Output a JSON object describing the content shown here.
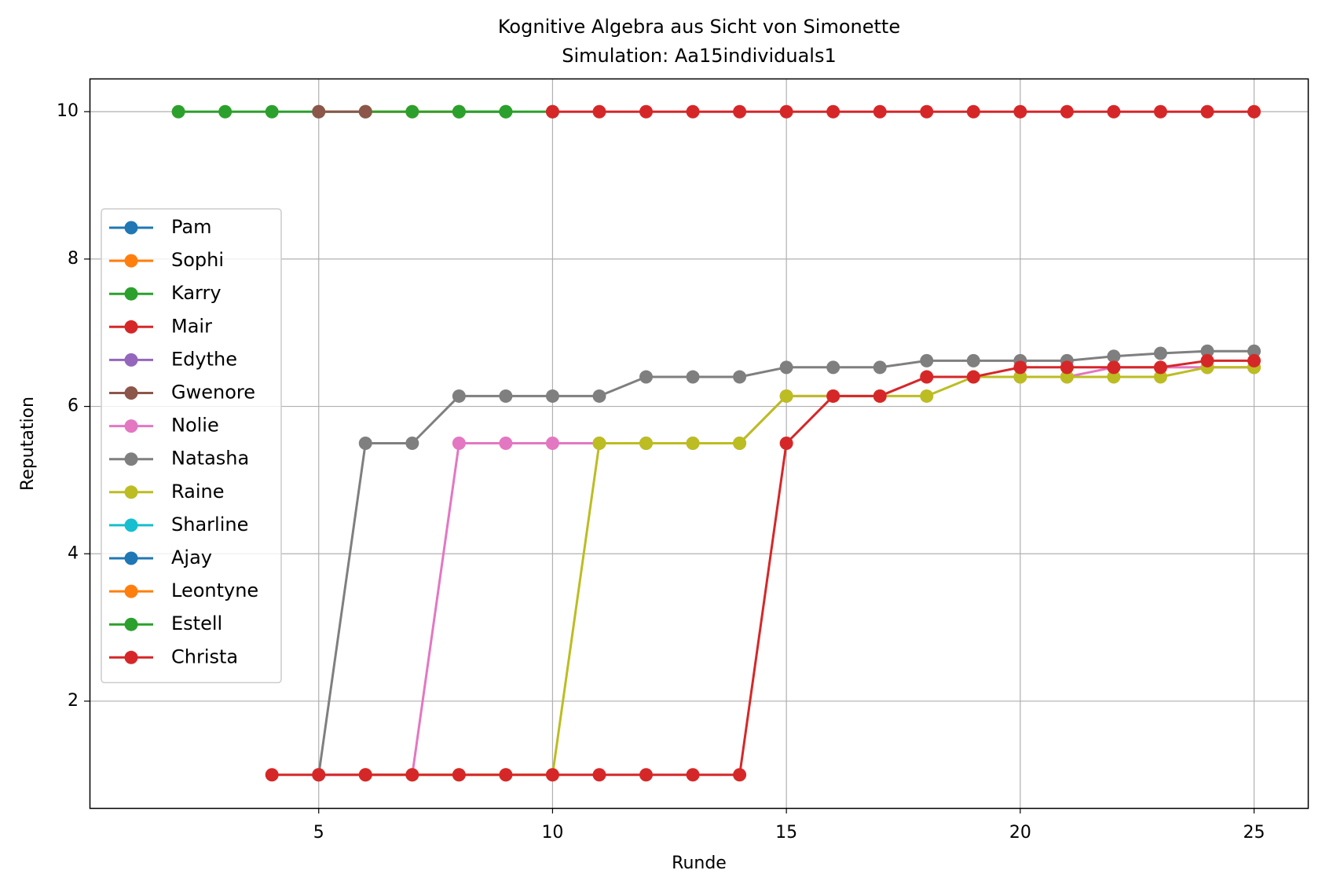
{
  "chart_data": {
    "type": "line",
    "title": "Kognitive Algebra aus Sicht von Simonette",
    "subtitle": "Simulation: Aa15individuals1",
    "xlabel": "Runde",
    "ylabel": "Reputation",
    "xlim": [
      0.1,
      26.15
    ],
    "ylim": [
      0.55,
      10.45
    ],
    "xticks": [
      5,
      10,
      15,
      20,
      25
    ],
    "yticks": [
      2,
      4,
      6,
      8,
      10
    ],
    "grid": true,
    "legend_position": "center-left",
    "series": [
      {
        "name": "Pam",
        "color": "#1f77b4",
        "points": []
      },
      {
        "name": "Sophi",
        "color": "#ff7f0e",
        "points": [
          [
            6,
            10
          ],
          [
            7,
            10
          ],
          [
            8,
            10
          ]
        ]
      },
      {
        "name": "Karry",
        "color": "#2ca02c",
        "points": [
          [
            2,
            10
          ],
          [
            3,
            10
          ],
          [
            4,
            10
          ],
          [
            5,
            10
          ],
          [
            6,
            10
          ],
          [
            7,
            10
          ],
          [
            8,
            10
          ],
          [
            9,
            10
          ],
          [
            10,
            10
          ]
        ]
      },
      {
        "name": "Mair",
        "color": "#d62728",
        "points": [
          [
            10,
            10
          ],
          [
            11,
            10
          ],
          [
            12,
            10
          ],
          [
            13,
            10
          ],
          [
            14,
            10
          ],
          [
            15,
            10
          ],
          [
            16,
            10
          ],
          [
            17,
            10
          ],
          [
            18,
            10
          ],
          [
            19,
            10
          ],
          [
            20,
            10
          ],
          [
            21,
            10
          ],
          [
            22,
            10
          ],
          [
            23,
            10
          ],
          [
            24,
            10
          ],
          [
            25,
            10
          ]
        ]
      },
      {
        "name": "Edythe",
        "color": "#9467bd",
        "points": []
      },
      {
        "name": "Gwenore",
        "color": "#8c564b",
        "points": [
          [
            5,
            10
          ],
          [
            6,
            10
          ]
        ]
      },
      {
        "name": "Nolie",
        "color": "#e377c2",
        "points": [
          [
            5,
            1
          ],
          [
            6,
            1
          ],
          [
            7,
            1
          ],
          [
            8,
            5.5
          ],
          [
            9,
            5.5
          ],
          [
            10,
            5.5
          ],
          [
            11,
            5.5
          ],
          [
            12,
            5.5
          ],
          [
            13,
            5.5
          ],
          [
            14,
            5.5
          ],
          [
            15,
            6.14
          ],
          [
            16,
            6.14
          ],
          [
            17,
            6.14
          ],
          [
            18,
            6.4
          ],
          [
            19,
            6.4
          ],
          [
            20,
            6.4
          ],
          [
            21,
            6.4
          ],
          [
            22,
            6.53
          ],
          [
            23,
            6.53
          ],
          [
            24,
            6.53
          ],
          [
            25,
            6.53
          ]
        ]
      },
      {
        "name": "Natasha",
        "color": "#7f7f7f",
        "points": [
          [
            5,
            1
          ],
          [
            6,
            5.5
          ],
          [
            7,
            5.5
          ],
          [
            8,
            6.14
          ],
          [
            9,
            6.14
          ],
          [
            10,
            6.14
          ],
          [
            11,
            6.14
          ],
          [
            12,
            6.4
          ],
          [
            13,
            6.4
          ],
          [
            14,
            6.4
          ],
          [
            15,
            6.53
          ],
          [
            16,
            6.53
          ],
          [
            17,
            6.53
          ],
          [
            18,
            6.62
          ],
          [
            19,
            6.62
          ],
          [
            20,
            6.62
          ],
          [
            21,
            6.62
          ],
          [
            22,
            6.68
          ],
          [
            23,
            6.72
          ],
          [
            24,
            6.75
          ],
          [
            25,
            6.75
          ]
        ]
      },
      {
        "name": "Raine",
        "color": "#bcbd22",
        "points": [
          [
            6,
            1
          ],
          [
            7,
            1
          ],
          [
            8,
            1
          ],
          [
            9,
            1
          ],
          [
            10,
            1
          ],
          [
            11,
            5.5
          ],
          [
            12,
            5.5
          ],
          [
            13,
            5.5
          ],
          [
            14,
            5.5
          ],
          [
            15,
            6.14
          ],
          [
            16,
            6.14
          ],
          [
            17,
            6.14
          ],
          [
            18,
            6.14
          ],
          [
            19,
            6.4
          ],
          [
            20,
            6.4
          ],
          [
            21,
            6.4
          ],
          [
            22,
            6.4
          ],
          [
            23,
            6.4
          ],
          [
            24,
            6.53
          ],
          [
            25,
            6.53
          ]
        ]
      },
      {
        "name": "Sharline",
        "color": "#17becf",
        "points": []
      },
      {
        "name": "Ajay",
        "color": "#1f77b4",
        "points": []
      },
      {
        "name": "Leontyne",
        "color": "#ff7f0e",
        "points": []
      },
      {
        "name": "Estell",
        "color": "#2ca02c",
        "points": [
          [
            8,
            10
          ],
          [
            9,
            10
          ]
        ]
      },
      {
        "name": "Christa",
        "color": "#d62728",
        "points": [
          [
            4,
            1
          ],
          [
            5,
            1
          ],
          [
            6,
            1
          ],
          [
            7,
            1
          ],
          [
            8,
            1
          ],
          [
            9,
            1
          ],
          [
            10,
            1
          ],
          [
            11,
            1
          ],
          [
            12,
            1
          ],
          [
            13,
            1
          ],
          [
            14,
            1
          ],
          [
            15,
            5.5
          ],
          [
            16,
            6.14
          ],
          [
            17,
            6.14
          ],
          [
            18,
            6.4
          ],
          [
            19,
            6.4
          ],
          [
            20,
            6.53
          ],
          [
            21,
            6.53
          ],
          [
            22,
            6.53
          ],
          [
            23,
            6.53
          ],
          [
            24,
            6.62
          ],
          [
            25,
            6.62
          ]
        ]
      }
    ]
  }
}
